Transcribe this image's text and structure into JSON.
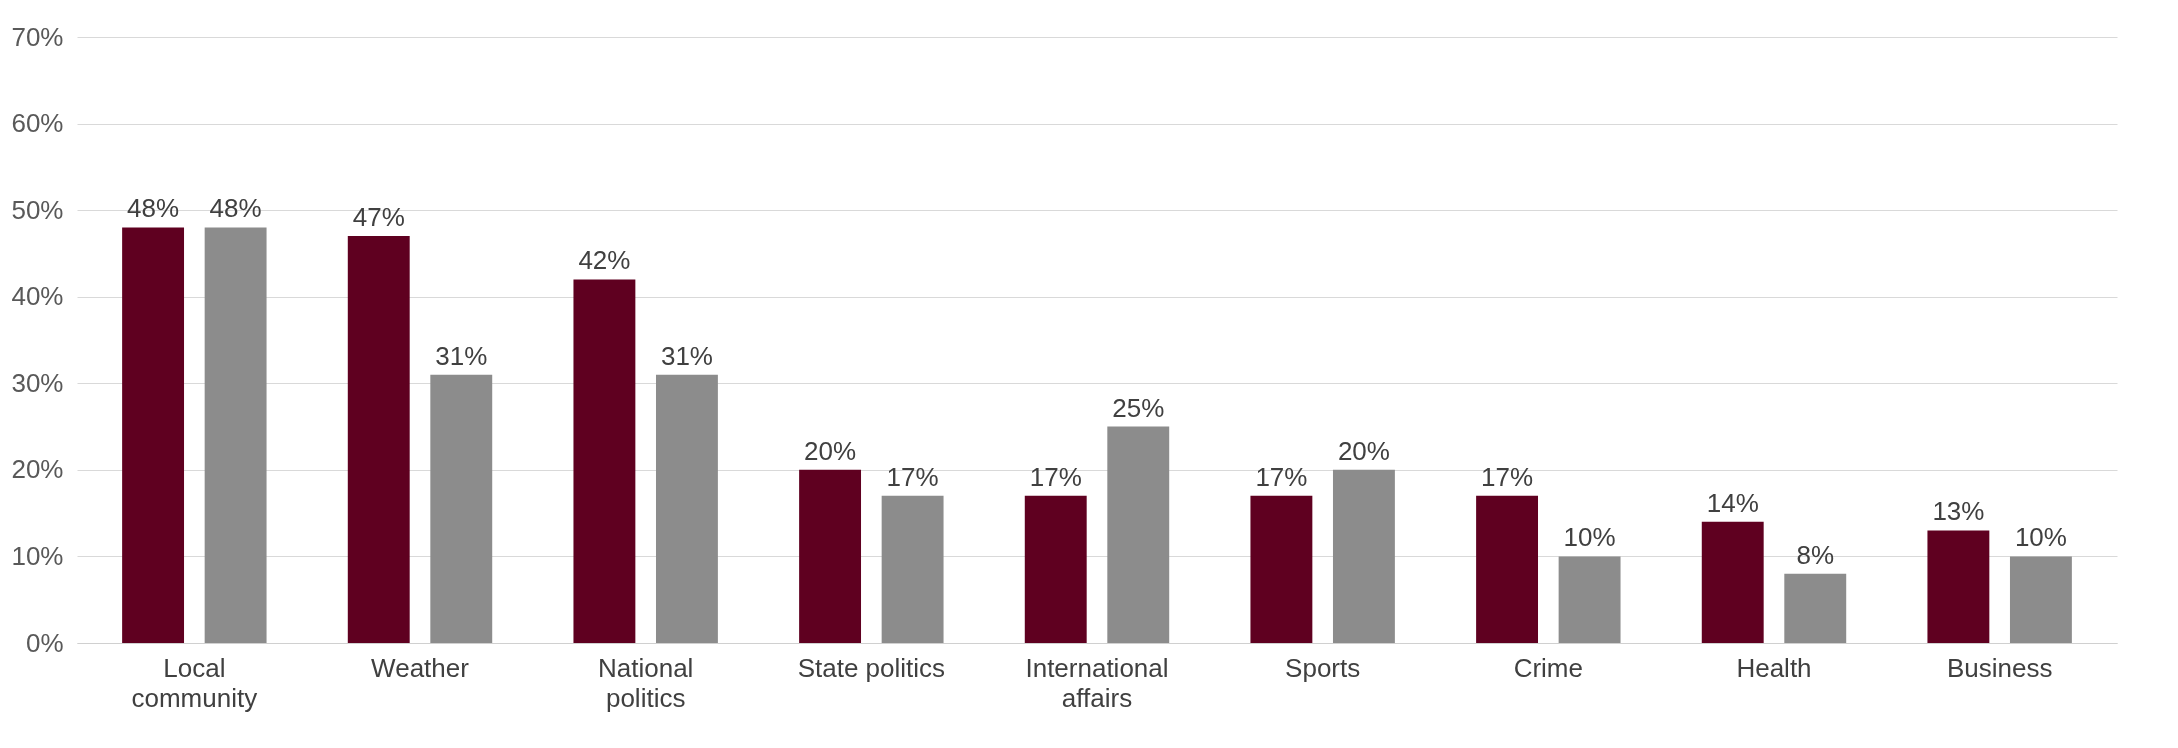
{
  "chart_data": {
    "type": "bar",
    "categories": [
      "Local community",
      "Weather",
      "National politics",
      "State politics",
      "International affairs",
      "Sports",
      "Crime",
      "Health",
      "Business"
    ],
    "series": [
      {
        "color": "#5f0020",
        "values": [
          48,
          47,
          42,
          20,
          17,
          17,
          17,
          14,
          13
        ],
        "value_labels": [
          "48%",
          "47%",
          "42%",
          "20%",
          "17%",
          "17%",
          "17%",
          "14%",
          "13%"
        ]
      },
      {
        "color": "#8c8c8c",
        "values": [
          48,
          31,
          31,
          17,
          25,
          20,
          10,
          8,
          10
        ],
        "value_labels": [
          "48%",
          "31%",
          "31%",
          "17%",
          "25%",
          "20%",
          "10%",
          "8%",
          "10%"
        ]
      }
    ],
    "ylim": [
      0,
      70
    ],
    "yticks": [
      {
        "value": 0,
        "label": "0%"
      },
      {
        "value": 10,
        "label": "10%"
      },
      {
        "value": 20,
        "label": "20%"
      },
      {
        "value": 30,
        "label": "30%"
      },
      {
        "value": 40,
        "label": "40%"
      },
      {
        "value": 50,
        "label": "50%"
      },
      {
        "value": 60,
        "label": "60%"
      },
      {
        "value": 70,
        "label": "70%"
      }
    ],
    "grid": "y",
    "legend": false
  }
}
